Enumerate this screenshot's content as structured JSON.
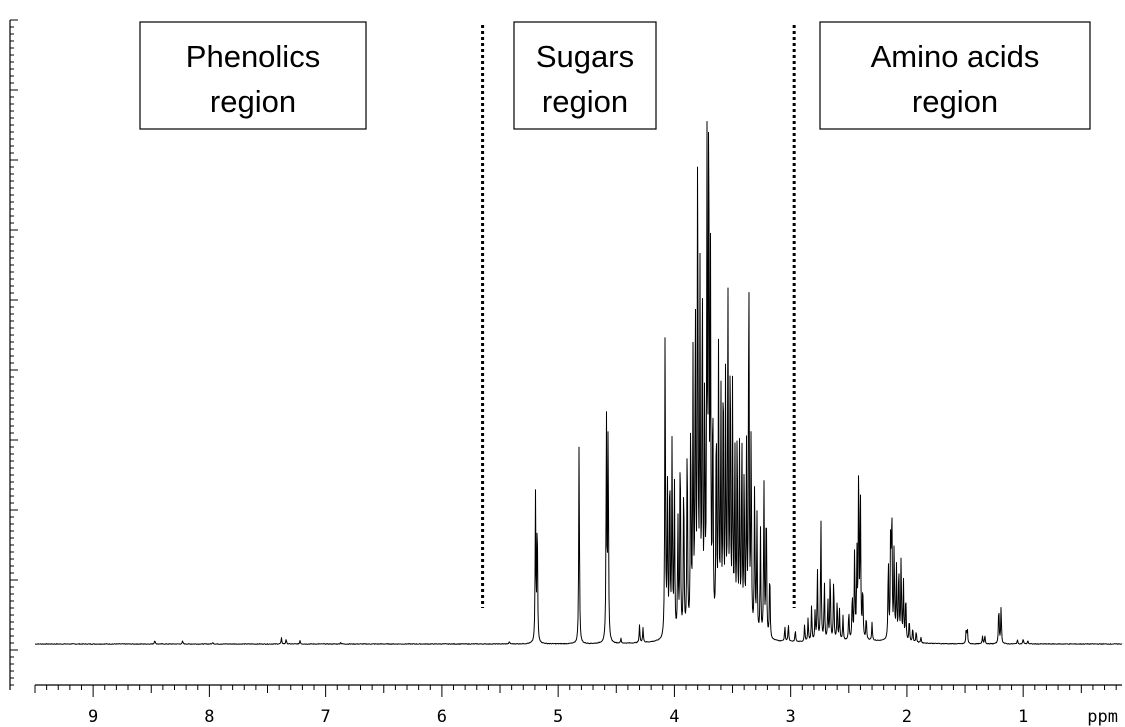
{
  "chart_data": {
    "type": "line",
    "xlabel": "ppm",
    "xlim": [
      9.5,
      0.15
    ],
    "x_reversed": true,
    "ylim": [
      0,
      100
    ],
    "grid": false,
    "x_ticks": [
      "9",
      "8",
      "7",
      "6",
      "5",
      "4",
      "3",
      "2",
      "1"
    ],
    "dividers": [
      5.65,
      2.97
    ],
    "regions": [
      {
        "line1": "Phenolics",
        "line2": "region"
      },
      {
        "line1": "Sugars",
        "line2": "region"
      },
      {
        "line1": "Amino acids",
        "line2": "region"
      }
    ],
    "region_spans": [
      [
        9.5,
        5.65
      ],
      [
        5.65,
        2.97
      ],
      [
        2.97,
        0.15
      ]
    ],
    "series": [
      {
        "peaks": [
          [
            8.47,
            0.7
          ],
          [
            8.23,
            0.5
          ],
          [
            7.97,
            0.3
          ],
          [
            7.38,
            1.0
          ],
          [
            7.34,
            0.8
          ],
          [
            7.22,
            0.6
          ],
          [
            6.87,
            0.3
          ],
          [
            5.42,
            0.4
          ],
          [
            5.195,
            24.5
          ],
          [
            5.18,
            22.0
          ],
          [
            4.82,
            34.0
          ],
          [
            4.585,
            38.5
          ],
          [
            4.57,
            37.0
          ],
          [
            4.46,
            0.8
          ],
          [
            4.3,
            3.0
          ],
          [
            4.27,
            2.5
          ],
          [
            4.08,
            53.0
          ],
          [
            4.06,
            25.0
          ],
          [
            4.04,
            30.0
          ],
          [
            4.02,
            33.0
          ],
          [
            4.0,
            26.0
          ],
          [
            3.97,
            20.0
          ],
          [
            3.95,
            34.0
          ],
          [
            3.92,
            28.0
          ],
          [
            3.89,
            35.0
          ],
          [
            3.86,
            38.0
          ],
          [
            3.84,
            45.0
          ],
          [
            3.82,
            57.0
          ],
          [
            3.8,
            85.0
          ],
          [
            3.78,
            58.0
          ],
          [
            3.76,
            62.0
          ],
          [
            3.74,
            40.0
          ],
          [
            3.72,
            78.0
          ],
          [
            3.705,
            94.0
          ],
          [
            3.69,
            60.0
          ],
          [
            3.67,
            42.0
          ],
          [
            3.64,
            38.0
          ],
          [
            3.62,
            48.0
          ],
          [
            3.6,
            40.0
          ],
          [
            3.58,
            47.0
          ],
          [
            3.56,
            42.0
          ],
          [
            3.54,
            58.0
          ],
          [
            3.52,
            50.0
          ],
          [
            3.5,
            40.0
          ],
          [
            3.48,
            32.0
          ],
          [
            3.46,
            36.0
          ],
          [
            3.44,
            30.0
          ],
          [
            3.42,
            34.0
          ],
          [
            3.4,
            28.0
          ],
          [
            3.38,
            30.0
          ],
          [
            3.36,
            66.0
          ],
          [
            3.34,
            35.0
          ],
          [
            3.31,
            26.0
          ],
          [
            3.29,
            20.0
          ],
          [
            3.26,
            18.0
          ],
          [
            3.23,
            26.0
          ],
          [
            3.21,
            24.0
          ],
          [
            3.18,
            12.0
          ],
          [
            3.05,
            2.5
          ],
          [
            3.02,
            3.0
          ],
          [
            2.96,
            2.0
          ],
          [
            2.88,
            3.0
          ],
          [
            2.85,
            4.0
          ],
          [
            2.82,
            6.0
          ],
          [
            2.79,
            5.0
          ],
          [
            2.77,
            12.0
          ],
          [
            2.74,
            21.0
          ],
          [
            2.71,
            10.0
          ],
          [
            2.68,
            7.0
          ],
          [
            2.66,
            12.0
          ],
          [
            2.63,
            11.0
          ],
          [
            2.6,
            7.0
          ],
          [
            2.58,
            5.0
          ],
          [
            2.55,
            4.0
          ],
          [
            2.5,
            5.0
          ],
          [
            2.47,
            8.0
          ],
          [
            2.45,
            15.0
          ],
          [
            2.43,
            14.0
          ],
          [
            2.415,
            30.0
          ],
          [
            2.4,
            23.0
          ],
          [
            2.38,
            9.0
          ],
          [
            2.35,
            4.0
          ],
          [
            2.3,
            3.0
          ],
          [
            2.16,
            14.0
          ],
          [
            2.14,
            18.0
          ],
          [
            2.13,
            22.0
          ],
          [
            2.11,
            16.0
          ],
          [
            2.09,
            12.0
          ],
          [
            2.07,
            13.0
          ],
          [
            2.05,
            14.0
          ],
          [
            2.03,
            10.0
          ],
          [
            2.01,
            8.0
          ],
          [
            1.98,
            4.0
          ],
          [
            1.95,
            2.5
          ],
          [
            1.92,
            2.0
          ],
          [
            1.88,
            1.0
          ],
          [
            1.49,
            2.6
          ],
          [
            1.48,
            2.4
          ],
          [
            1.35,
            1.3
          ],
          [
            1.33,
            1.5
          ],
          [
            1.21,
            6.5
          ],
          [
            1.19,
            6.2
          ],
          [
            1.05,
            0.7
          ],
          [
            1.0,
            0.9
          ],
          [
            0.96,
            0.6
          ]
        ]
      }
    ]
  }
}
